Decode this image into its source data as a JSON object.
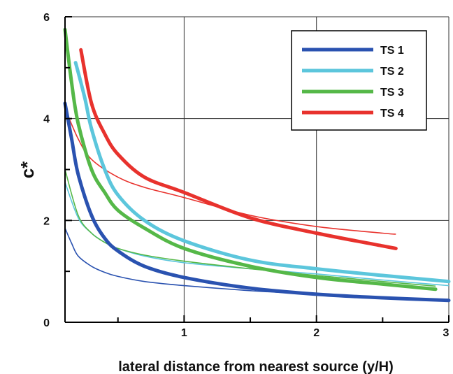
{
  "chart_data": {
    "type": "line",
    "title": "",
    "xlabel": "lateral distance from nearest source (y/H)",
    "ylabel": "c*",
    "xlim": [
      0.1,
      3
    ],
    "ylim": [
      0,
      6
    ],
    "x_ticks": [
      "1",
      "2",
      "3"
    ],
    "y_ticks": [
      "0",
      "2",
      "4",
      "6"
    ],
    "grid": true,
    "legend_position": "top-right",
    "series": [
      {
        "name": "TS 1",
        "color": "#2a52b0",
        "thick": {
          "x": [
            0.1,
            0.15,
            0.2,
            0.3,
            0.4,
            0.5,
            0.7,
            1.0,
            1.5,
            2.0,
            2.5,
            3.0
          ],
          "y": [
            4.3,
            3.6,
            2.9,
            2.1,
            1.65,
            1.4,
            1.1,
            0.88,
            0.67,
            0.55,
            0.48,
            0.43
          ]
        },
        "thin": {
          "x": [
            0.1,
            0.15,
            0.2,
            0.3,
            0.4,
            0.5,
            0.7,
            1.0,
            1.5,
            2.0,
            2.5,
            3.0
          ],
          "y": [
            1.85,
            1.55,
            1.3,
            1.1,
            0.98,
            0.9,
            0.8,
            0.72,
            0.62,
            0.55,
            0.49,
            0.45
          ]
        }
      },
      {
        "name": "TS 2",
        "color": "#5cc6dc",
        "thick": {
          "x": [
            0.18,
            0.25,
            0.3,
            0.4,
            0.5,
            0.7,
            1.0,
            1.5,
            2.0,
            2.5,
            3.0
          ],
          "y": [
            5.1,
            4.4,
            3.8,
            3.0,
            2.5,
            2.0,
            1.6,
            1.22,
            1.05,
            0.92,
            0.8
          ]
        },
        "thin": {
          "x": [
            0.1,
            0.2,
            0.3,
            0.4,
            0.5,
            0.7,
            1.0,
            1.5,
            2.0,
            2.5,
            3.0
          ],
          "y": [
            2.75,
            2.05,
            1.75,
            1.57,
            1.45,
            1.3,
            1.17,
            1.05,
            0.95,
            0.83,
            0.72
          ]
        }
      },
      {
        "name": "TS 3",
        "color": "#55b848",
        "thick": {
          "x": [
            0.1,
            0.15,
            0.2,
            0.3,
            0.4,
            0.5,
            0.7,
            1.0,
            1.5,
            2.0,
            2.5,
            2.9
          ],
          "y": [
            5.75,
            4.7,
            3.9,
            3.0,
            2.55,
            2.2,
            1.85,
            1.45,
            1.1,
            0.88,
            0.75,
            0.65
          ]
        },
        "thin": {
          "x": [
            0.1,
            0.2,
            0.3,
            0.4,
            0.5,
            0.7,
            1.0,
            1.5,
            2.0,
            2.5,
            2.9
          ],
          "y": [
            3.0,
            2.1,
            1.75,
            1.57,
            1.45,
            1.32,
            1.2,
            1.05,
            0.92,
            0.8,
            0.71
          ]
        }
      },
      {
        "name": "TS 4",
        "color": "#e8322d",
        "thick": {
          "x": [
            0.22,
            0.3,
            0.4,
            0.5,
            0.7,
            1.0,
            1.5,
            2.0,
            2.5,
            2.6
          ],
          "y": [
            5.35,
            4.3,
            3.7,
            3.3,
            2.85,
            2.55,
            2.05,
            1.75,
            1.5,
            1.45
          ]
        },
        "thin": {
          "x": [
            0.1,
            0.2,
            0.3,
            0.5,
            0.7,
            1.0,
            1.5,
            2.0,
            2.5,
            2.6
          ],
          "y": [
            4.2,
            3.6,
            3.2,
            2.85,
            2.65,
            2.45,
            2.1,
            1.88,
            1.75,
            1.73
          ]
        }
      }
    ]
  }
}
